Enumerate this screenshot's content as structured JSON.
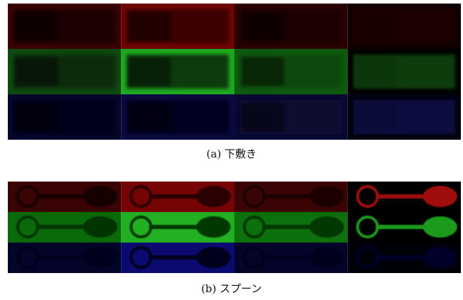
{
  "figures": [
    {
      "caption": "(a) 下敷き"
    },
    {
      "caption": "(b) スプーン"
    }
  ]
}
